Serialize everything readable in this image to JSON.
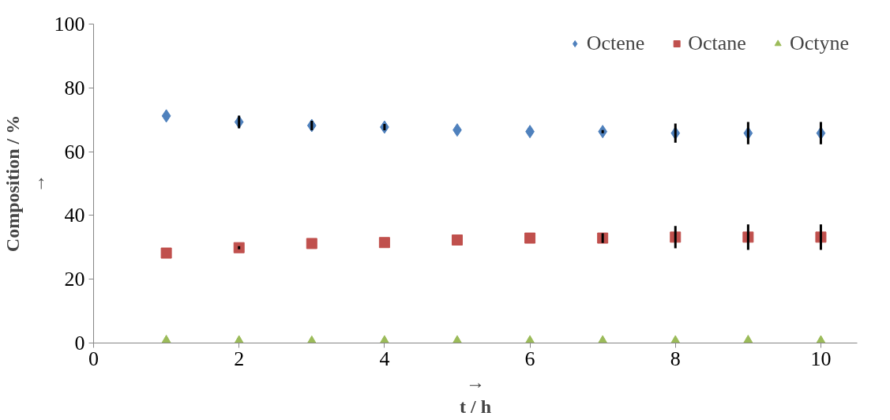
{
  "chart_data": {
    "type": "scatter",
    "xlabel": "→\nt / h",
    "ylabel": "Composition / %\n→",
    "x": [
      1,
      2,
      3,
      4,
      5,
      6,
      7,
      8,
      9,
      10
    ],
    "series": [
      {
        "name": "Octene",
        "color": "#4f81bd",
        "marker": "diamond",
        "values": [
          71.2,
          69.3,
          68.2,
          67.7,
          66.8,
          66.3,
          66.3,
          65.8,
          65.8,
          65.8
        ],
        "errors": [
          null,
          2,
          1.5,
          1,
          null,
          null,
          0.5,
          3,
          3.5,
          3.5
        ]
      },
      {
        "name": "Octane",
        "color": "#c0504d",
        "marker": "square",
        "values": [
          28.2,
          29.9,
          31.2,
          31.5,
          32.3,
          32.9,
          32.9,
          33.2,
          33.2,
          33.2
        ],
        "errors": [
          null,
          0.5,
          null,
          null,
          null,
          null,
          1.5,
          3.5,
          4,
          4
        ]
      },
      {
        "name": "Octyne",
        "color": "#9bbb59",
        "marker": "triangle",
        "values": [
          0.6,
          0.5,
          0.4,
          0.5,
          0.5,
          0.5,
          0.5,
          0.5,
          0.6,
          0.5
        ]
      }
    ],
    "xlim": [
      0,
      10.5
    ],
    "ylim": [
      0,
      100
    ],
    "xticks": [
      0,
      2,
      4,
      6,
      8,
      10
    ],
    "yticks": [
      0,
      20,
      40,
      60,
      80,
      100
    ],
    "grid": false,
    "legend": "top right"
  }
}
